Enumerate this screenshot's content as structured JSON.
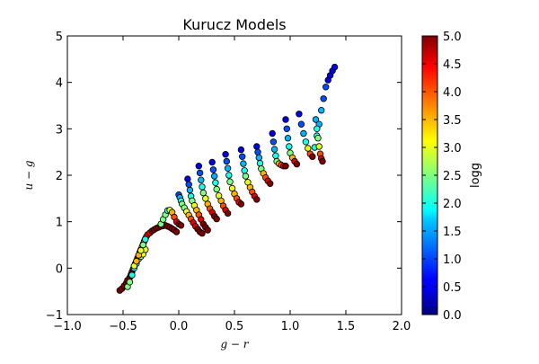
{
  "chart_data": {
    "type": "scatter",
    "title": "Kurucz Models",
    "xlabel": "g − r",
    "ylabel": "u − g",
    "xlim": [
      -1.0,
      2.0
    ],
    "ylim": [
      -1,
      5
    ],
    "xticks": [
      "−1.0",
      "−0.5",
      "0.0",
      "0.5",
      "1.0",
      "1.5",
      "2.0"
    ],
    "yticks": [
      "−1",
      "0",
      "1",
      "2",
      "3",
      "4",
      "5"
    ],
    "grid": false,
    "colorbar": {
      "label": "logg",
      "range": [
        0.0,
        5.0
      ],
      "ticks": [
        "0.0",
        "0.5",
        "1.0",
        "1.5",
        "2.0",
        "2.5",
        "3.0",
        "3.5",
        "4.0",
        "4.5",
        "5.0"
      ],
      "colormap": "jet"
    },
    "marker_edge_color": "#000000",
    "series": [
      {
        "x": [
          -0.53,
          -0.51,
          -0.49,
          -0.47,
          -0.46,
          -0.44,
          -0.43,
          -0.42,
          -0.41,
          -0.4,
          -0.39,
          -0.38,
          -0.37,
          -0.36,
          -0.35,
          -0.34,
          -0.33,
          -0.32,
          -0.31,
          -0.3,
          -0.29,
          -0.28,
          -0.26,
          -0.24,
          -0.22,
          -0.2,
          -0.18,
          -0.16,
          -0.14,
          -0.12,
          -0.1,
          -0.08,
          -0.06,
          -0.04,
          -0.02,
          -0.46,
          -0.44,
          -0.42,
          -0.4,
          -0.38,
          -0.36,
          -0.34,
          -0.32,
          -0.3,
          -0.4,
          -0.38,
          -0.36,
          -0.34,
          -0.32,
          -0.3,
          -0.16,
          -0.14,
          -0.12,
          -0.1,
          -0.08,
          -0.06,
          -0.04,
          -0.02,
          0.0,
          0.02,
          0.0,
          0.01,
          0.02,
          0.03,
          0.05,
          0.07,
          0.09,
          0.11,
          0.13,
          0.15,
          0.17,
          0.19,
          0.21,
          0.08,
          0.09,
          0.1,
          0.11,
          0.12,
          0.14,
          0.16,
          0.18,
          0.2,
          0.22,
          0.24,
          0.26,
          0.18,
          0.19,
          0.2,
          0.21,
          0.22,
          0.24,
          0.26,
          0.28,
          0.3,
          0.32,
          0.34,
          0.3,
          0.31,
          0.32,
          0.33,
          0.34,
          0.36,
          0.38,
          0.4,
          0.42,
          0.44,
          0.42,
          0.43,
          0.44,
          0.45,
          0.46,
          0.48,
          0.5,
          0.52,
          0.54,
          0.56,
          0.56,
          0.57,
          0.58,
          0.59,
          0.6,
          0.62,
          0.64,
          0.66,
          0.68,
          0.7,
          0.7,
          0.71,
          0.72,
          0.73,
          0.74,
          0.76,
          0.78,
          0.8,
          0.82,
          0.84,
          0.85,
          0.86,
          0.87,
          0.88,
          0.9,
          0.92,
          0.94,
          0.96,
          0.96,
          0.97,
          0.98,
          0.99,
          1.0,
          1.02,
          1.04,
          1.06,
          1.08,
          1.1,
          1.12,
          1.14,
          1.16,
          1.18,
          1.2,
          1.22,
          1.24,
          1.26,
          1.28,
          1.3,
          1.32,
          1.34,
          1.36,
          1.38,
          1.4,
          1.23,
          1.24,
          1.25,
          1.26,
          1.27,
          1.28,
          1.29
        ],
        "y": [
          -0.48,
          -0.44,
          -0.38,
          -0.32,
          -0.26,
          -0.2,
          -0.14,
          -0.08,
          -0.02,
          0.04,
          0.1,
          0.16,
          0.22,
          0.28,
          0.34,
          0.4,
          0.46,
          0.52,
          0.58,
          0.63,
          0.68,
          0.72,
          0.76,
          0.8,
          0.83,
          0.86,
          0.88,
          0.9,
          0.91,
          0.92,
          0.9,
          0.88,
          0.85,
          0.82,
          0.78,
          -0.4,
          -0.3,
          -0.15,
          0.0,
          0.1,
          0.2,
          0.25,
          0.3,
          0.4,
          0.05,
          0.15,
          0.28,
          0.38,
          0.5,
          0.62,
          0.95,
          1.05,
          1.15,
          1.24,
          1.25,
          1.2,
          1.1,
          1.0,
          0.95,
          0.92,
          1.58,
          1.52,
          1.45,
          1.38,
          1.3,
          1.22,
          1.14,
          1.06,
          0.98,
          0.9,
          0.84,
          0.78,
          0.75,
          1.92,
          1.8,
          1.68,
          1.55,
          1.45,
          1.35,
          1.25,
          1.15,
          1.05,
          0.95,
          0.88,
          0.82,
          2.2,
          2.05,
          1.9,
          1.75,
          1.62,
          1.5,
          1.38,
          1.28,
          1.2,
          1.12,
          1.06,
          2.28,
          2.12,
          1.98,
          1.84,
          1.7,
          1.56,
          1.45,
          1.34,
          1.25,
          1.18,
          2.45,
          2.3,
          2.15,
          2.0,
          1.86,
          1.72,
          1.6,
          1.5,
          1.42,
          1.38,
          2.55,
          2.4,
          2.25,
          2.1,
          1.98,
          1.85,
          1.74,
          1.64,
          1.55,
          1.48,
          2.62,
          2.5,
          2.38,
          2.26,
          2.14,
          2.04,
          1.95,
          1.88,
          1.82,
          2.9,
          2.72,
          2.56,
          2.42,
          2.3,
          2.25,
          2.22,
          2.2,
          2.2,
          3.2,
          3.0,
          2.8,
          2.62,
          2.48,
          2.38,
          2.3,
          2.24,
          3.32,
          3.1,
          2.9,
          2.72,
          2.58,
          2.46,
          2.4,
          2.6,
          2.85,
          3.1,
          3.4,
          3.65,
          3.9,
          4.05,
          4.15,
          4.25,
          4.33,
          3.2,
          3.0,
          2.8,
          2.62,
          2.46,
          2.36,
          2.3
        ],
        "color_values": [
          5.0,
          5.0,
          5.0,
          5.0,
          5.0,
          5.0,
          5.0,
          5.0,
          5.0,
          5.0,
          5.0,
          5.0,
          5.0,
          4.5,
          4.5,
          4.5,
          4.0,
          4.0,
          4.0,
          4.0,
          4.0,
          4.5,
          4.5,
          5.0,
          5.0,
          5.0,
          5.0,
          5.0,
          5.0,
          5.0,
          5.0,
          5.0,
          5.0,
          5.0,
          5.0,
          2.5,
          2.5,
          2.0,
          2.0,
          2.0,
          2.5,
          2.5,
          3.0,
          3.0,
          3.0,
          3.5,
          3.5,
          3.0,
          2.5,
          2.0,
          2.5,
          2.5,
          2.5,
          2.0,
          3.0,
          3.5,
          4.0,
          4.5,
          5.0,
          5.0,
          1.0,
          1.5,
          2.0,
          2.5,
          2.5,
          3.0,
          3.5,
          4.0,
          4.5,
          4.5,
          5.0,
          5.0,
          5.0,
          0.5,
          1.0,
          1.5,
          2.0,
          2.5,
          3.0,
          3.5,
          4.0,
          4.5,
          5.0,
          5.0,
          5.0,
          0.5,
          1.0,
          1.5,
          2.0,
          2.5,
          3.0,
          3.5,
          4.0,
          4.5,
          5.0,
          5.0,
          0.5,
          1.0,
          1.5,
          2.0,
          2.5,
          3.0,
          3.5,
          4.0,
          4.5,
          5.0,
          0.5,
          1.0,
          1.5,
          2.0,
          2.5,
          3.0,
          3.5,
          4.0,
          4.5,
          5.0,
          0.5,
          1.0,
          1.5,
          2.0,
          2.5,
          3.0,
          3.5,
          4.0,
          4.5,
          5.0,
          0.5,
          1.0,
          1.5,
          2.0,
          2.5,
          3.5,
          4.0,
          4.5,
          5.0,
          0.5,
          1.0,
          1.5,
          2.0,
          2.5,
          3.5,
          4.0,
          4.5,
          5.0,
          0.5,
          1.0,
          1.5,
          2.0,
          2.5,
          3.5,
          4.5,
          5.0,
          0.5,
          1.0,
          1.5,
          2.0,
          3.0,
          4.0,
          5.0,
          2.0,
          2.0,
          1.5,
          1.5,
          1.0,
          1.0,
          0.5,
          0.5,
          0.5,
          0.5,
          1.5,
          2.0,
          2.5,
          3.0,
          4.0,
          4.5,
          5.0
        ]
      }
    ]
  }
}
